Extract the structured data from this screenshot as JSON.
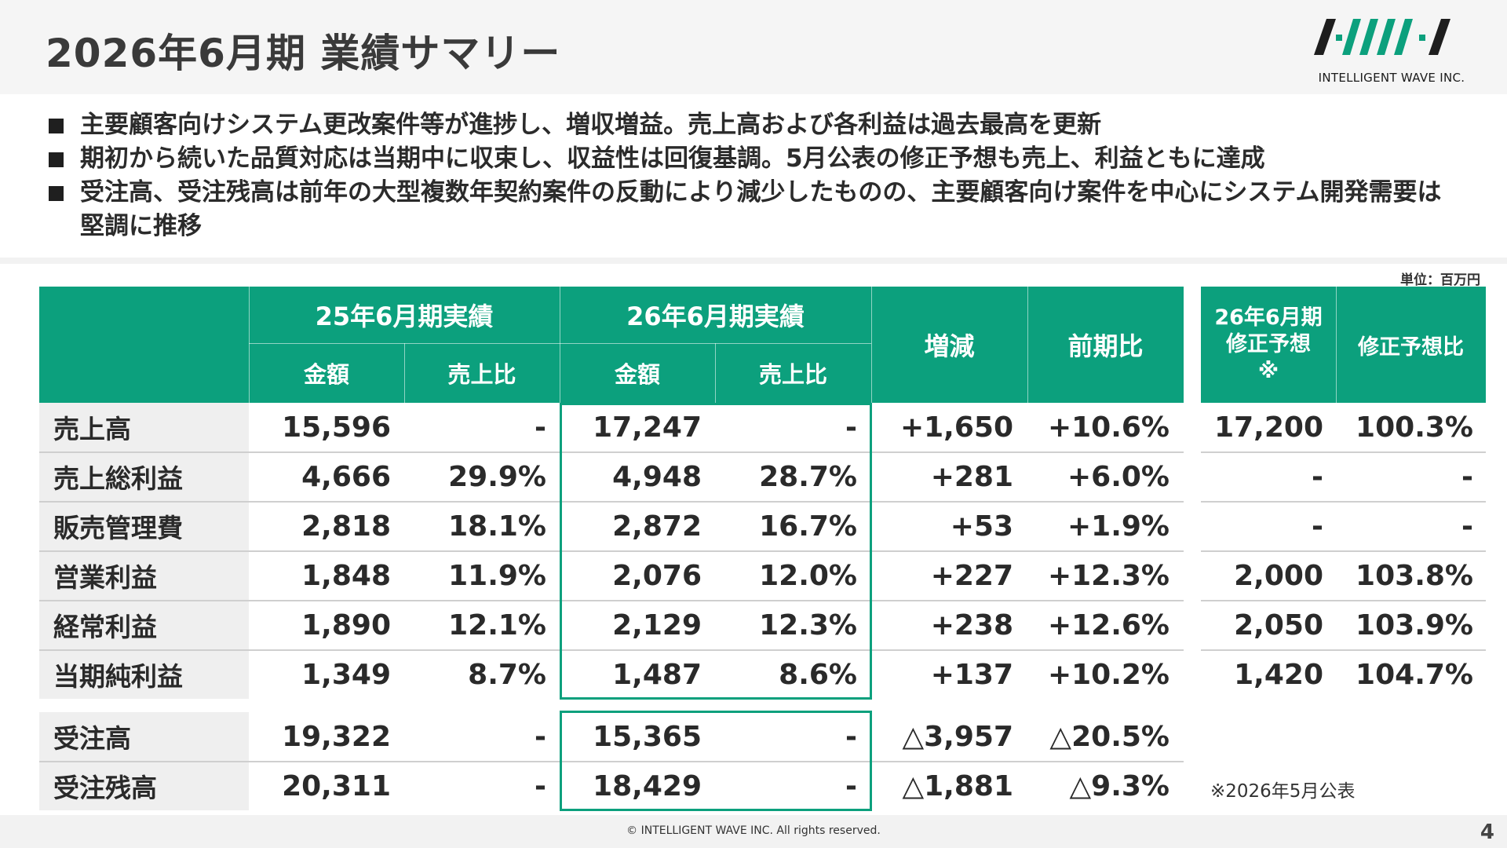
{
  "header": {
    "title": "2026年6月期 業績サマリー",
    "logo_text": "INTELLIGENT WAVE INC."
  },
  "bullets": [
    "主要顧客向けシステム更改案件等が進捗し、増収増益。売上高および各利益は過去最高を更新",
    "期初から続いた品質対応は当期中に収束し、収益性は回復基調。5月公表の修正予想も売上、利益ともに達成",
    "受注高、受注残高は前年の大型複数年契約案件の反動により減少したものの、主要顧客向け案件を中心にシステム開発需要は堅調に推移"
  ],
  "table": {
    "unit": "単位：百万円",
    "headers": {
      "fy25": "25年6月期実績",
      "fy26": "26年6月期実績",
      "amount": "金額",
      "ratio": "売上比",
      "change": "増減",
      "yoy": "前期比"
    },
    "rows": [
      {
        "label": "売上高",
        "fy25_amount": "15,596",
        "fy25_ratio": "-",
        "fy26_amount": "17,247",
        "fy26_ratio": "-",
        "change": "+1,650",
        "yoy": "+10.6%"
      },
      {
        "label": "売上総利益",
        "fy25_amount": "4,666",
        "fy25_ratio": "29.9%",
        "fy26_amount": "4,948",
        "fy26_ratio": "28.7%",
        "change": "+281",
        "yoy": "+6.0%"
      },
      {
        "label": "販売管理費",
        "fy25_amount": "2,818",
        "fy25_ratio": "18.1%",
        "fy26_amount": "2,872",
        "fy26_ratio": "16.7%",
        "change": "+53",
        "yoy": "+1.9%"
      },
      {
        "label": "営業利益",
        "fy25_amount": "1,848",
        "fy25_ratio": "11.9%",
        "fy26_amount": "2,076",
        "fy26_ratio": "12.0%",
        "change": "+227",
        "yoy": "+12.3%"
      },
      {
        "label": "経常利益",
        "fy25_amount": "1,890",
        "fy25_ratio": "12.1%",
        "fy26_amount": "2,129",
        "fy26_ratio": "12.3%",
        "change": "+238",
        "yoy": "+12.6%"
      },
      {
        "label": "当期純利益",
        "fy25_amount": "1,349",
        "fy25_ratio": "8.7%",
        "fy26_amount": "1,487",
        "fy26_ratio": "8.6%",
        "change": "+137",
        "yoy": "+10.2%"
      }
    ],
    "order_rows": [
      {
        "label": "受注高",
        "fy25_amount": "19,322",
        "fy25_ratio": "-",
        "fy26_amount": "15,365",
        "fy26_ratio": "-",
        "change": "△3,957",
        "yoy": "△20.5%"
      },
      {
        "label": "受注残高",
        "fy25_amount": "20,311",
        "fy25_ratio": "-",
        "fy26_amount": "18,429",
        "fy26_ratio": "-",
        "change": "△1,881",
        "yoy": "△9.3%"
      }
    ]
  },
  "forecast": {
    "header_forecast_lines": [
      "26年6月期",
      "修正予想",
      "※"
    ],
    "header_ratio": "修正予想比",
    "rows": [
      {
        "forecast": "17,200",
        "ratio": "100.3%"
      },
      {
        "forecast": "-",
        "ratio": "-"
      },
      {
        "forecast": "-",
        "ratio": "-"
      },
      {
        "forecast": "2,000",
        "ratio": "103.8%"
      },
      {
        "forecast": "2,050",
        "ratio": "103.9%"
      },
      {
        "forecast": "1,420",
        "ratio": "104.7%"
      }
    ],
    "footnote": "※2026年5月公表"
  },
  "footer": {
    "copyright": "© INTELLIGENT WAVE INC. All rights reserved.",
    "page_number": "4"
  },
  "colors": {
    "accent_green": "#0ca07d",
    "label_bg": "#efefef"
  }
}
